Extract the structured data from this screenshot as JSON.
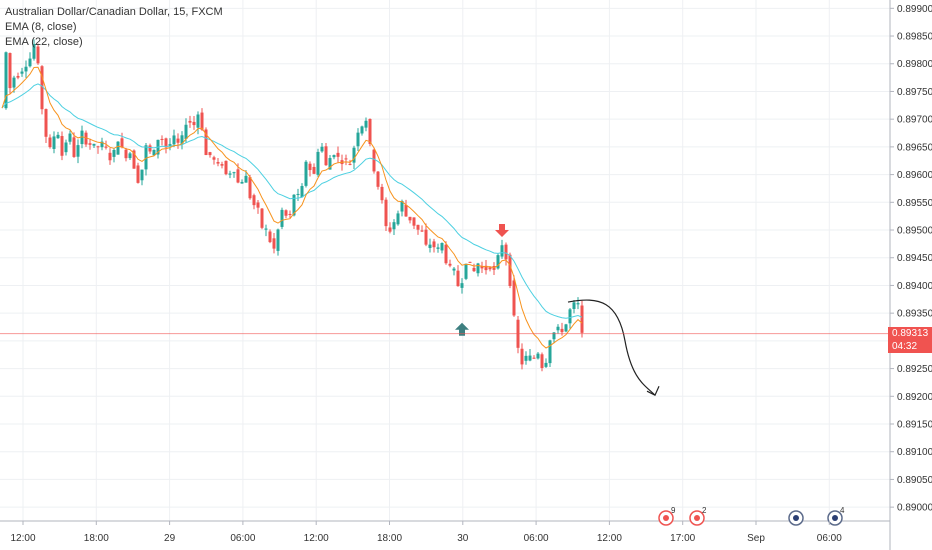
{
  "header": {
    "symbol_line": "Australian Dollar/Canadian Dollar, 15, FXCM",
    "ema_fast": "EMA (8, close)",
    "ema_slow": "EMA (22, close)"
  },
  "price_axis": {
    "current_price": "0.89313",
    "countdown": "04:32",
    "current_color": "#f05350"
  },
  "colors": {
    "up": "#26a69a",
    "down": "#ef5350",
    "ema_fast": "#f7931e",
    "ema_slow": "#4dd0e1",
    "grid": "#eef0f3",
    "arrow_up": "#3d7f80",
    "arrow_down": "#ef5350"
  },
  "events": [
    {
      "icon": "canada-flag-icon",
      "count": "9"
    },
    {
      "icon": "canada-flag-icon",
      "count": "2"
    },
    {
      "icon": "australia-flag-icon",
      "count": ""
    },
    {
      "icon": "australia-flag-icon",
      "count": "4"
    }
  ],
  "chart_data": {
    "type": "candlestick",
    "title": "Australian Dollar/Canadian Dollar, 15, FXCM",
    "ylim": [
      0.88975,
      0.89915
    ],
    "y_ticks": [
      "0.89000",
      "0.89050",
      "0.89100",
      "0.89150",
      "0.89200",
      "0.89250",
      "0.89300",
      "0.89350",
      "0.89400",
      "0.89450",
      "0.89500",
      "0.89550",
      "0.89600",
      "0.89650",
      "0.89700",
      "0.89750",
      "0.89800",
      "0.89850",
      "0.89900"
    ],
    "x_ticks": [
      "12:00",
      "18:00",
      "29",
      "06:00",
      "12:00",
      "18:00",
      "30",
      "06:00",
      "12:00",
      "17:00",
      "Sep",
      "06:00"
    ],
    "anchors": [
      [
        0,
        0.8972
      ],
      [
        4,
        0.8982
      ],
      [
        9,
        0.8974
      ],
      [
        14,
        0.898
      ],
      [
        18,
        0.8976
      ],
      [
        22,
        0.8982
      ],
      [
        26,
        0.8978
      ],
      [
        30,
        0.8984
      ],
      [
        34,
        0.8983
      ],
      [
        38,
        0.8976
      ],
      [
        42,
        0.8968
      ],
      [
        46,
        0.8966
      ],
      [
        50,
        0.8963
      ],
      [
        54,
        0.8971
      ],
      [
        58,
        0.8964
      ],
      [
        62,
        0.8963
      ],
      [
        66,
        0.8969
      ],
      [
        70,
        0.8965
      ],
      [
        74,
        0.8962
      ],
      [
        78,
        0.8968
      ],
      [
        82,
        0.8967
      ],
      [
        86,
        0.8965
      ],
      [
        90,
        0.8966
      ],
      [
        94,
        0.8964
      ],
      [
        98,
        0.8966
      ],
      [
        102,
        0.8965
      ],
      [
        106,
        0.8964
      ],
      [
        110,
        0.8962
      ],
      [
        114,
        0.8966
      ],
      [
        118,
        0.8967
      ],
      [
        122,
        0.8962
      ],
      [
        126,
        0.8965
      ],
      [
        130,
        0.8963
      ],
      [
        134,
        0.896
      ],
      [
        138,
        0.8958
      ],
      [
        142,
        0.8964
      ],
      [
        146,
        0.8966
      ],
      [
        150,
        0.8962
      ],
      [
        154,
        0.8966
      ],
      [
        158,
        0.8967
      ],
      [
        162,
        0.8966
      ],
      [
        166,
        0.8964
      ],
      [
        170,
        0.8967
      ],
      [
        174,
        0.8966
      ],
      [
        178,
        0.8965
      ],
      [
        182,
        0.8968
      ],
      [
        186,
        0.8971
      ],
      [
        190,
        0.8968
      ],
      [
        194,
        0.897
      ],
      [
        198,
        0.8972
      ],
      [
        202,
        0.8965
      ],
      [
        206,
        0.8962
      ],
      [
        210,
        0.8965
      ],
      [
        214,
        0.896
      ],
      [
        218,
        0.8963
      ],
      [
        222,
        0.8961
      ],
      [
        226,
        0.8959
      ],
      [
        230,
        0.8962
      ],
      [
        234,
        0.896
      ],
      [
        238,
        0.8957
      ],
      [
        242,
        0.8961
      ],
      [
        246,
        0.8958
      ],
      [
        250,
        0.8954
      ],
      [
        254,
        0.8955
      ],
      [
        258,
        0.8952
      ],
      [
        262,
        0.8949
      ],
      [
        266,
        0.8951
      ],
      [
        270,
        0.8945
      ],
      [
        274,
        0.8948
      ],
      [
        278,
        0.8952
      ],
      [
        282,
        0.8955
      ],
      [
        286,
        0.895
      ],
      [
        290,
        0.8955
      ],
      [
        294,
        0.8958
      ],
      [
        298,
        0.8954
      ],
      [
        302,
        0.8961
      ],
      [
        306,
        0.8964
      ],
      [
        310,
        0.8958
      ],
      [
        314,
        0.8962
      ],
      [
        318,
        0.8967
      ],
      [
        322,
        0.8963
      ],
      [
        326,
        0.896
      ],
      [
        330,
        0.8966
      ],
      [
        334,
        0.8962
      ],
      [
        338,
        0.8964
      ],
      [
        342,
        0.8961
      ],
      [
        346,
        0.8964
      ],
      [
        350,
        0.896
      ],
      [
        354,
        0.897
      ],
      [
        358,
        0.8966
      ],
      [
        362,
        0.8972
      ],
      [
        366,
        0.8968
      ],
      [
        370,
        0.8962
      ],
      [
        374,
        0.896
      ],
      [
        378,
        0.8956
      ],
      [
        382,
        0.8954
      ],
      [
        386,
        0.8947
      ],
      [
        390,
        0.8953
      ],
      [
        394,
        0.895
      ],
      [
        398,
        0.8956
      ],
      [
        402,
        0.8954
      ],
      [
        406,
        0.8951
      ],
      [
        410,
        0.8953
      ],
      [
        414,
        0.8949
      ],
      [
        418,
        0.8951
      ],
      [
        422,
        0.8948
      ],
      [
        426,
        0.8946
      ],
      [
        430,
        0.8949
      ],
      [
        434,
        0.8945
      ],
      [
        438,
        0.8948
      ],
      [
        442,
        0.8947
      ],
      [
        446,
        0.8942
      ],
      [
        450,
        0.8944
      ],
      [
        454,
        0.8941
      ],
      [
        458,
        0.8939
      ],
      [
        462,
        0.8943
      ],
      [
        466,
        0.8946
      ],
      [
        470,
        0.8941
      ],
      [
        474,
        0.8944
      ],
      [
        478,
        0.8944
      ],
      [
        482,
        0.8942
      ],
      [
        486,
        0.8944
      ],
      [
        490,
        0.8943
      ],
      [
        494,
        0.8942
      ],
      [
        498,
        0.8948
      ],
      [
        502,
        0.8947
      ],
      [
        506,
        0.8943
      ],
      [
        510,
        0.8938
      ],
      [
        514,
        0.893
      ],
      [
        518,
        0.8927
      ],
      [
        522,
        0.8925
      ],
      [
        526,
        0.8929
      ],
      [
        530,
        0.8925
      ],
      [
        534,
        0.8929
      ],
      [
        538,
        0.8927
      ],
      [
        542,
        0.8924
      ],
      [
        546,
        0.8929
      ],
      [
        550,
        0.8932
      ],
      [
        554,
        0.8931
      ],
      [
        558,
        0.8933
      ],
      [
        562,
        0.8931
      ],
      [
        566,
        0.8935
      ],
      [
        570,
        0.8936
      ],
      [
        574,
        0.8937
      ],
      [
        578,
        0.8936
      ],
      [
        580,
        0.8931
      ]
    ],
    "projection": [
      [
        568,
        0.8937
      ],
      [
        600,
        0.8937
      ],
      [
        625,
        0.893
      ],
      [
        645,
        0.8922
      ],
      [
        658,
        0.892
      ]
    ],
    "signals": [
      {
        "type": "buy",
        "at": 462,
        "price": 0.8932
      },
      {
        "type": "sell",
        "at": 502,
        "price": 0.895
      }
    ]
  }
}
